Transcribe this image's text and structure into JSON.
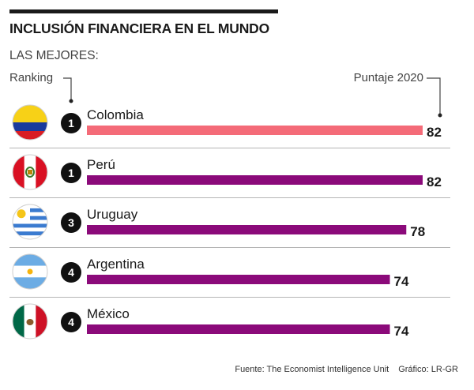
{
  "header": {
    "title": "INCLUSIÓN FINANCIERA EN EL MUNDO",
    "subtitle": "LAS MEJORES:"
  },
  "labels": {
    "ranking": "Ranking",
    "score": "Puntaje 2020"
  },
  "footer": {
    "source": "Fuente: The Economist Intelligence Unit",
    "credit": "Gráfico: LR-GR"
  },
  "colors": {
    "highlight": "#f46b78",
    "bar": "#8b0a7a",
    "rank_badge": "#111111"
  },
  "chart_data": {
    "type": "bar",
    "orientation": "horizontal",
    "title": "INCLUSIÓN FINANCIERA EN EL MUNDO",
    "subtitle": "LAS MEJORES:",
    "xlabel": "Puntaje 2020",
    "ylabel": "Ranking",
    "categories": [
      "Colombia",
      "Perú",
      "Uruguay",
      "Argentina",
      "México"
    ],
    "ranks": [
      1,
      1,
      3,
      4,
      4
    ],
    "values": [
      82,
      82,
      78,
      74,
      74
    ],
    "flags": [
      "colombia-flag",
      "peru-flag",
      "uruguay-flag",
      "argentina-flag",
      "mexico-flag"
    ],
    "highlighted": "Colombia",
    "xlim": [
      0,
      82
    ]
  }
}
